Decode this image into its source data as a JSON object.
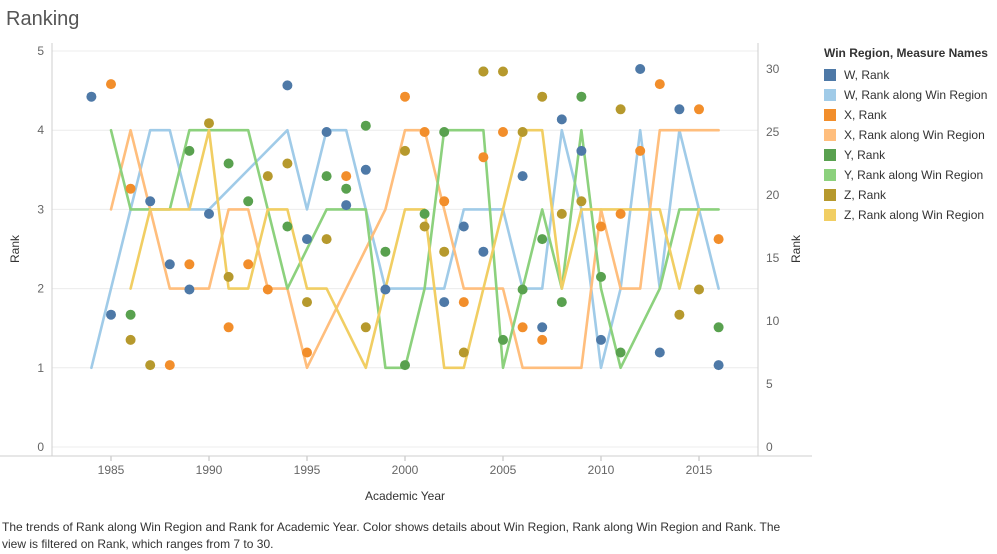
{
  "page": {
    "title": "Ranking"
  },
  "caption": "The trends of Rank along Win Region and Rank for Academic Year.  Color shows details about Win Region, Rank along Win Region and Rank. The view is filtered on Rank, which ranges from 7 to 30.",
  "legend": {
    "title": "Win Region, Measure Names",
    "items": [
      {
        "label": "W, Rank",
        "color": "#4e79a7"
      },
      {
        "label": "W, Rank along Win Region",
        "color": "#a0cbe8"
      },
      {
        "label": "X, Rank",
        "color": "#f28e2b"
      },
      {
        "label": "X, Rank along Win Region",
        "color": "#ffbe7d"
      },
      {
        "label": "Y, Rank",
        "color": "#59a14f"
      },
      {
        "label": "Y, Rank along Win Region",
        "color": "#8cd17d"
      },
      {
        "label": "Z, Rank",
        "color": "#b6992d"
      },
      {
        "label": "Z, Rank along Win Region",
        "color": "#f1ce63"
      }
    ]
  },
  "chart_data": {
    "type": "line+scatter",
    "xlabel": "Academic Year",
    "ylabel_left": "Rank",
    "ylabel_right": "Rank",
    "xlim": [
      1985,
      2016
    ],
    "x_ticks": [
      "1985",
      "1990",
      "1995",
      "2000",
      "2005",
      "2010",
      "2015"
    ],
    "ylim_left": [
      0,
      5
    ],
    "y_ticks_left": [
      "0",
      "1",
      "2",
      "3",
      "4",
      "5"
    ],
    "ylim_right": [
      0,
      30
    ],
    "y_ticks_right": [
      "0",
      "5",
      "10",
      "15",
      "20",
      "25",
      "30"
    ],
    "grid": true,
    "legend_position": "right",
    "lines": [
      {
        "name": "W, Rank along Win Region",
        "color": "#a0cbe8",
        "x": [
          1984,
          1985,
          1986,
          1987,
          1988,
          1989,
          1990,
          1994,
          1995,
          1996,
          1997,
          1998,
          1999,
          2000,
          2001,
          2002,
          2003,
          2004,
          2005,
          2006,
          2007,
          2008,
          2009,
          2010,
          2011,
          2012,
          2013,
          2014,
          2015,
          2016
        ],
        "y": [
          1,
          2,
          3,
          4,
          4,
          3,
          3,
          4,
          3,
          4,
          4,
          3,
          2,
          2,
          2,
          2,
          3,
          3,
          3,
          2,
          2,
          4,
          3,
          1,
          2,
          4,
          2,
          4,
          3,
          2
        ]
      },
      {
        "name": "X, Rank along Win Region",
        "color": "#ffbe7d",
        "x": [
          1985,
          1986,
          1987,
          1988,
          1989,
          1990,
          1991,
          1992,
          1993,
          1994,
          1995,
          1996,
          1997,
          1998,
          1999,
          2000,
          2001,
          2002,
          2003,
          2004,
          2005,
          2006,
          2007,
          2008,
          2009,
          2010,
          2011,
          2012,
          2013,
          2014,
          2015,
          2016
        ],
        "y": [
          3,
          4,
          3,
          2,
          2,
          2,
          3,
          3,
          2,
          2,
          1,
          1.5,
          2,
          2.5,
          3,
          4,
          4,
          3,
          2,
          2,
          2,
          1,
          1,
          1,
          1,
          3,
          2,
          2,
          4,
          4,
          4,
          4
        ]
      },
      {
        "name": "Y, Rank along Win Region",
        "color": "#8cd17d",
        "x": [
          1985,
          1986,
          1987,
          1988,
          1989,
          1990,
          1991,
          1992,
          1993,
          1994,
          1995,
          1996,
          1997,
          1998,
          1999,
          2000,
          2001,
          2002,
          2003,
          2004,
          2005,
          2006,
          2007,
          2008,
          2009,
          2010,
          2011,
          2012,
          2013,
          2014,
          2015,
          2016
        ],
        "y": [
          4,
          3,
          3,
          3,
          4,
          4,
          4,
          4,
          3,
          2,
          2.5,
          3,
          3,
          3,
          1,
          1,
          2,
          4,
          4,
          4,
          1,
          2,
          3,
          2,
          4,
          2,
          1,
          1.5,
          2,
          3,
          3,
          3
        ]
      },
      {
        "name": "Z, Rank along Win Region",
        "color": "#f1ce63",
        "x": [
          1986,
          1987,
          1988,
          1989,
          1990,
          1991,
          1992,
          1993,
          1994,
          1995,
          1996,
          1997,
          1998,
          1999,
          2000,
          2001,
          2002,
          2003,
          2004,
          2005,
          2006,
          2007,
          2008,
          2009,
          2010,
          2011,
          2012,
          2013,
          2014,
          2015
        ],
        "y": [
          2,
          3,
          3,
          3,
          4,
          2,
          2,
          3,
          3,
          2,
          2,
          1.5,
          1,
          2,
          3,
          3,
          1,
          1,
          2,
          3,
          4,
          4,
          2,
          3,
          3,
          3,
          3,
          3,
          2,
          3
        ]
      }
    ],
    "points": [
      {
        "name": "W, Rank",
        "color": "#4e79a7",
        "x": [
          1984,
          1985,
          1987,
          1988,
          1989,
          1990,
          1994,
          1995,
          1996,
          1997,
          1998,
          1999,
          2002,
          2003,
          2004,
          2006,
          2007,
          2008,
          2009,
          2010,
          2012,
          2013,
          2014,
          2016
        ],
        "y": [
          27.8,
          10.5,
          19.5,
          14.5,
          12.5,
          18.5,
          28.7,
          16.5,
          25,
          19.2,
          22,
          12.5,
          11.5,
          17.5,
          15.5,
          21.5,
          9.5,
          26,
          23.5,
          8.5,
          30,
          7.5,
          26.8,
          6.5
        ]
      },
      {
        "name": "X, Rank",
        "color": "#f28e2b",
        "x": [
          1985,
          1986,
          1988,
          1989,
          1991,
          1992,
          1993,
          1995,
          1997,
          2000,
          2001,
          2002,
          2003,
          2004,
          2005,
          2006,
          2007,
          2010,
          2011,
          2012,
          2013,
          2015,
          2016
        ],
        "y": [
          28.8,
          20.5,
          6.5,
          14.5,
          9.5,
          14.5,
          12.5,
          7.5,
          21.5,
          27.8,
          25,
          19.5,
          11.5,
          23,
          25,
          9.5,
          8.5,
          17.5,
          18.5,
          23.5,
          28.8,
          26.8,
          16.5
        ]
      },
      {
        "name": "Y, Rank",
        "color": "#59a14f",
        "x": [
          1986,
          1989,
          1991,
          1992,
          1994,
          1996,
          1997,
          1998,
          1999,
          2000,
          2001,
          2002,
          2004,
          2005,
          2006,
          2007,
          2008,
          2009,
          2010,
          2011,
          2016
        ],
        "y": [
          10.5,
          23.5,
          22.5,
          19.5,
          17.5,
          21.5,
          20.5,
          25.5,
          15.5,
          6.5,
          18.5,
          25,
          29.8,
          8.5,
          12.5,
          16.5,
          11.5,
          27.8,
          13.5,
          7.5,
          9.5
        ]
      },
      {
        "name": "Z, Rank",
        "color": "#b6992d",
        "x": [
          1986,
          1987,
          1990,
          1991,
          1993,
          1994,
          1995,
          1996,
          1998,
          2000,
          2001,
          2002,
          2003,
          2004,
          2005,
          2006,
          2007,
          2008,
          2009,
          2011,
          2014,
          2015
        ],
        "y": [
          8.5,
          6.5,
          25.7,
          13.5,
          21.5,
          22.5,
          11.5,
          16.5,
          9.5,
          23.5,
          17.5,
          15.5,
          7.5,
          29.8,
          29.8,
          25,
          27.8,
          18.5,
          19.5,
          26.8,
          10.5,
          12.5
        ]
      }
    ]
  }
}
